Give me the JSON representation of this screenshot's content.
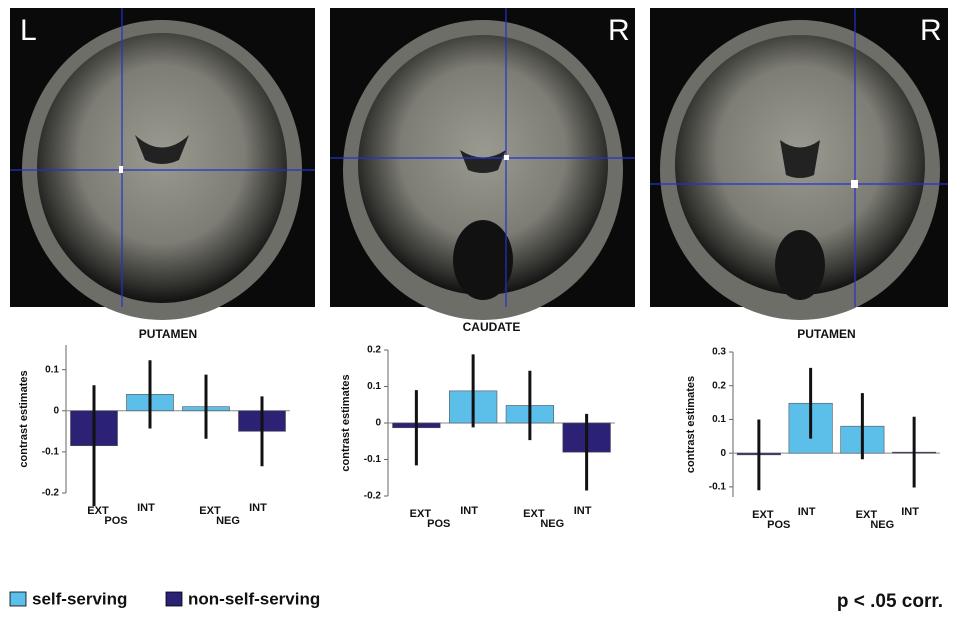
{
  "images": [
    {
      "label": "L"
    },
    {
      "label": "R"
    },
    {
      "label": "R"
    }
  ],
  "legend": [
    {
      "label": "self-serving",
      "color": "#5bbfea"
    },
    {
      "label": "non-self-serving",
      "color": "#2b2175"
    }
  ],
  "note": "p < .05 corr.",
  "chart_data": [
    {
      "type": "bar",
      "title": "PUTAMEN",
      "y_label": "contrast estimates",
      "categories": [
        "EXT",
        "INT",
        "EXT",
        "INT"
      ],
      "groups": [
        "POS",
        "NEG"
      ],
      "values": [
        -0.085,
        0.04,
        0.01,
        -0.05
      ],
      "errors": [
        0.147,
        0.083,
        0.078,
        0.085
      ],
      "colors": [
        "#2b2175",
        "#5bbfea",
        "#5bbfea",
        "#2b2175"
      ],
      "ylim": [
        -0.2,
        0.16
      ],
      "yticks": [
        -0.2,
        -0.1,
        0,
        0.1
      ]
    },
    {
      "type": "bar",
      "title": "CAUDATE",
      "y_label": "contrast estimates",
      "categories": [
        "EXT",
        "INT",
        "EXT",
        "INT"
      ],
      "groups": [
        "POS",
        "NEG"
      ],
      "values": [
        -0.013,
        0.088,
        0.048,
        -0.08
      ],
      "errors": [
        0.103,
        0.1,
        0.095,
        0.105
      ],
      "colors": [
        "#2b2175",
        "#5bbfea",
        "#5bbfea",
        "#2b2175"
      ],
      "ylim": [
        -0.2,
        0.2
      ],
      "yticks": [
        -0.2,
        -0.1,
        0,
        0.1,
        0.2
      ]
    },
    {
      "type": "bar",
      "title": "PUTAMEN",
      "y_label": "contrast estimates",
      "categories": [
        "EXT",
        "INT",
        "EXT",
        "INT"
      ],
      "groups": [
        "POS",
        "NEG"
      ],
      "values": [
        -0.005,
        0.148,
        0.08,
        0.003
      ],
      "errors": [
        0.105,
        0.105,
        0.098,
        0.105
      ],
      "colors": [
        "#2b2175",
        "#5bbfea",
        "#5bbfea",
        "#2b2175"
      ],
      "ylim": [
        -0.13,
        0.3
      ],
      "yticks": [
        -0.1,
        0,
        0.1,
        0.2,
        0.3
      ]
    }
  ]
}
